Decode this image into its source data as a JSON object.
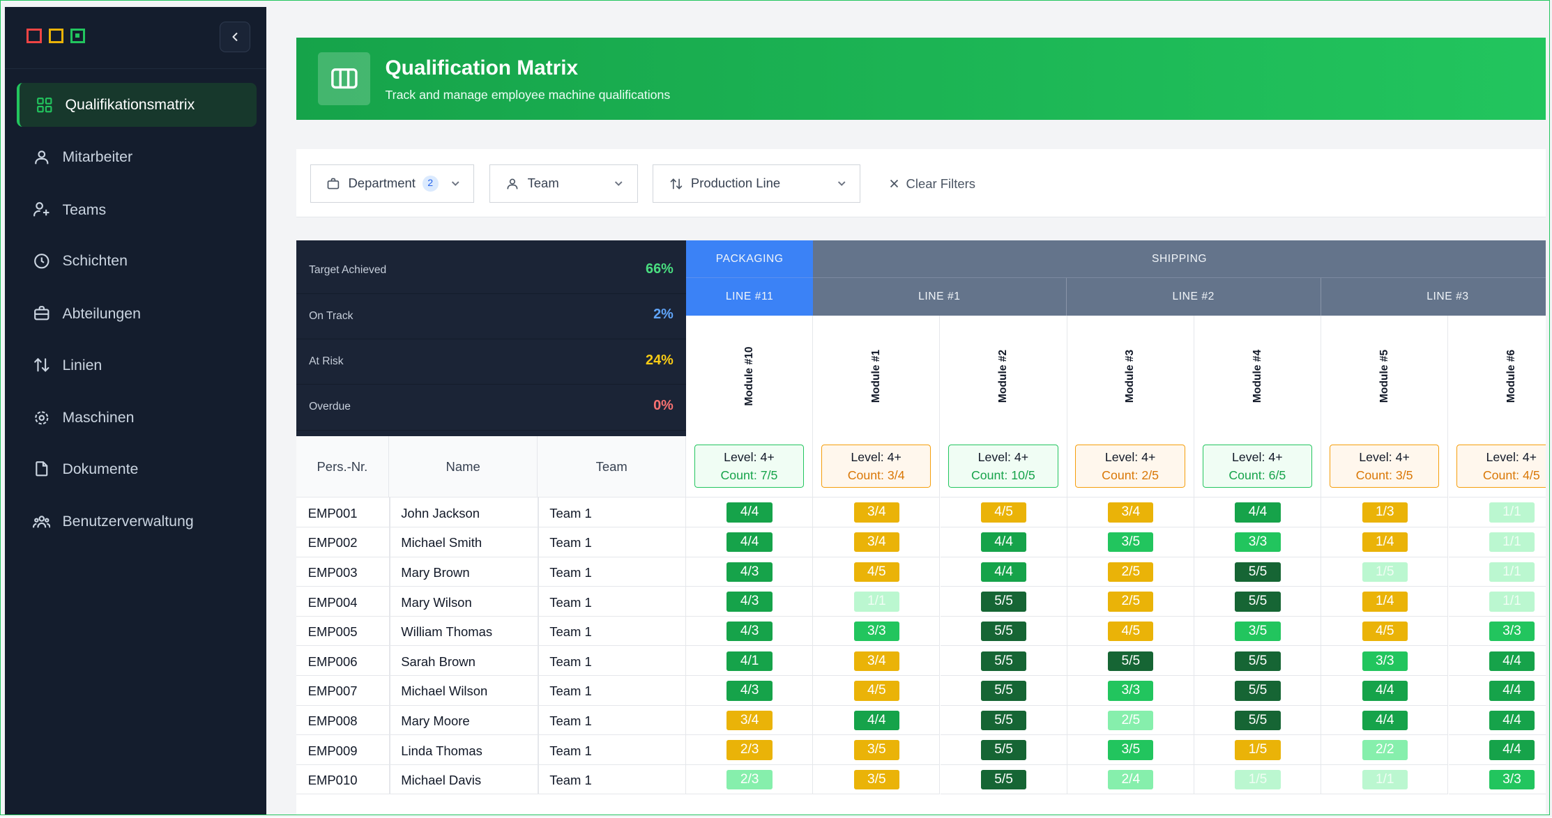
{
  "sidebar": {
    "items": [
      {
        "label": "Qualifikationsmatrix",
        "icon": "grid-icon",
        "active": true
      },
      {
        "label": "Mitarbeiter",
        "icon": "users-icon"
      },
      {
        "label": "Teams",
        "icon": "user-plus-icon"
      },
      {
        "label": "Schichten",
        "icon": "clock-icon"
      },
      {
        "label": "Abteilungen",
        "icon": "briefcase-icon"
      },
      {
        "label": "Linien",
        "icon": "arrows-updown-icon"
      },
      {
        "label": "Maschinen",
        "icon": "gear-icon"
      },
      {
        "label": "Dokumente",
        "icon": "file-icon"
      },
      {
        "label": "Benutzerverwaltung",
        "icon": "user-group-icon"
      }
    ]
  },
  "header": {
    "title": "Qualification Matrix",
    "subtitle": "Track and manage employee machine qualifications"
  },
  "filters": {
    "department": {
      "label": "Department",
      "badge": "2"
    },
    "team": {
      "label": "Team"
    },
    "line": {
      "label": "Production Line"
    },
    "clear": "Clear Filters"
  },
  "stats": [
    {
      "label": "Target Achieved",
      "value": "66%",
      "color": "#4ade80"
    },
    {
      "label": "On Track",
      "value": "2%",
      "color": "#60a5fa"
    },
    {
      "label": "At Risk",
      "value": "24%",
      "color": "#facc15"
    },
    {
      "label": "Overdue",
      "value": "0%",
      "color": "#f87171"
    }
  ],
  "departments": [
    {
      "name": "PACKAGING",
      "color": "#3b82f6"
    },
    {
      "name": "SHIPPING",
      "color": "#64748b"
    }
  ],
  "lines": [
    {
      "name": "LINE #11",
      "color": "#3b82f6"
    },
    {
      "name": "LINE #1",
      "color": "#64748b"
    },
    {
      "name": "LINE #2",
      "color": "#64748b"
    },
    {
      "name": "LINE #3",
      "color": "#64748b"
    }
  ],
  "person_headers": {
    "id": "Pers.-Nr.",
    "name": "Name",
    "team": "Team"
  },
  "modules": [
    {
      "name": "Module #10",
      "level": "Level: 4+",
      "count": "Count: 7/5",
      "status": "ok"
    },
    {
      "name": "Module #1",
      "level": "Level: 4+",
      "count": "Count: 3/4",
      "status": "warn"
    },
    {
      "name": "Module #2",
      "level": "Level: 4+",
      "count": "Count: 10/5",
      "status": "ok"
    },
    {
      "name": "Module #3",
      "level": "Level: 4+",
      "count": "Count: 2/5",
      "status": "warn"
    },
    {
      "name": "Module #4",
      "level": "Level: 4+",
      "count": "Count: 6/5",
      "status": "ok"
    },
    {
      "name": "Module #5",
      "level": "Level: 4+",
      "count": "Count: 3/5",
      "status": "warn"
    },
    {
      "name": "Module #6",
      "level": "Level: 4+",
      "count": "Count: 4/5",
      "status": "warn"
    }
  ],
  "employees": [
    {
      "id": "EMP001",
      "name": "John Jackson",
      "team": "Team 1",
      "cells": [
        [
          "4/4",
          "g"
        ],
        [
          "3/4",
          "y"
        ],
        [
          "4/5",
          "y"
        ],
        [
          "3/4",
          "y"
        ],
        [
          "4/4",
          "g"
        ],
        [
          "1/3",
          "y"
        ],
        [
          "1/1",
          "pg"
        ]
      ]
    },
    {
      "id": "EMP002",
      "name": "Michael Smith",
      "team": "Team 1",
      "cells": [
        [
          "4/4",
          "g"
        ],
        [
          "3/4",
          "y"
        ],
        [
          "4/4",
          "g"
        ],
        [
          "3/5",
          "mg"
        ],
        [
          "3/3",
          "mg"
        ],
        [
          "1/4",
          "y"
        ],
        [
          "1/1",
          "pg"
        ]
      ]
    },
    {
      "id": "EMP003",
      "name": "Mary Brown",
      "team": "Team 1",
      "cells": [
        [
          "4/3",
          "g"
        ],
        [
          "4/5",
          "y"
        ],
        [
          "4/4",
          "g"
        ],
        [
          "2/5",
          "y"
        ],
        [
          "5/5",
          "dg"
        ],
        [
          "1/5",
          "pg"
        ],
        [
          "1/1",
          "pg"
        ]
      ]
    },
    {
      "id": "EMP004",
      "name": "Mary Wilson",
      "team": "Team 1",
      "cells": [
        [
          "4/3",
          "g"
        ],
        [
          "1/1",
          "pg"
        ],
        [
          "5/5",
          "dg"
        ],
        [
          "2/5",
          "y"
        ],
        [
          "5/5",
          "dg"
        ],
        [
          "1/4",
          "y"
        ],
        [
          "1/1",
          "pg"
        ]
      ]
    },
    {
      "id": "EMP005",
      "name": "William Thomas",
      "team": "Team 1",
      "cells": [
        [
          "4/3",
          "g"
        ],
        [
          "3/3",
          "mg"
        ],
        [
          "5/5",
          "dg"
        ],
        [
          "4/5",
          "y"
        ],
        [
          "3/5",
          "mg"
        ],
        [
          "4/5",
          "y"
        ],
        [
          "3/3",
          "mg"
        ]
      ]
    },
    {
      "id": "EMP006",
      "name": "Sarah Brown",
      "team": "Team 1",
      "cells": [
        [
          "4/1",
          "g"
        ],
        [
          "3/4",
          "y"
        ],
        [
          "5/5",
          "dg"
        ],
        [
          "5/5",
          "dg"
        ],
        [
          "5/5",
          "dg"
        ],
        [
          "3/3",
          "mg"
        ],
        [
          "4/4",
          "g"
        ]
      ]
    },
    {
      "id": "EMP007",
      "name": "Michael Wilson",
      "team": "Team 1",
      "cells": [
        [
          "4/3",
          "g"
        ],
        [
          "4/5",
          "y"
        ],
        [
          "5/5",
          "dg"
        ],
        [
          "3/3",
          "mg"
        ],
        [
          "5/5",
          "dg"
        ],
        [
          "4/4",
          "g"
        ],
        [
          "4/4",
          "g"
        ]
      ]
    },
    {
      "id": "EMP008",
      "name": "Mary Moore",
      "team": "Team 1",
      "cells": [
        [
          "3/4",
          "y"
        ],
        [
          "4/4",
          "g"
        ],
        [
          "5/5",
          "dg"
        ],
        [
          "2/5",
          "lg"
        ],
        [
          "5/5",
          "dg"
        ],
        [
          "4/4",
          "g"
        ],
        [
          "4/4",
          "g"
        ]
      ]
    },
    {
      "id": "EMP009",
      "name": "Linda Thomas",
      "team": "Team 1",
      "cells": [
        [
          "2/3",
          "y"
        ],
        [
          "3/5",
          "y"
        ],
        [
          "5/5",
          "dg"
        ],
        [
          "3/5",
          "mg"
        ],
        [
          "1/5",
          "y"
        ],
        [
          "2/2",
          "lg"
        ],
        [
          "4/4",
          "g"
        ]
      ]
    },
    {
      "id": "EMP010",
      "name": "Michael Davis",
      "team": "Team 1",
      "cells": [
        [
          "2/3",
          "lg"
        ],
        [
          "3/5",
          "y"
        ],
        [
          "5/5",
          "dg"
        ],
        [
          "2/4",
          "lg"
        ],
        [
          "1/5",
          "pg"
        ],
        [
          "1/1",
          "pg"
        ],
        [
          "3/3",
          "mg"
        ]
      ]
    }
  ]
}
